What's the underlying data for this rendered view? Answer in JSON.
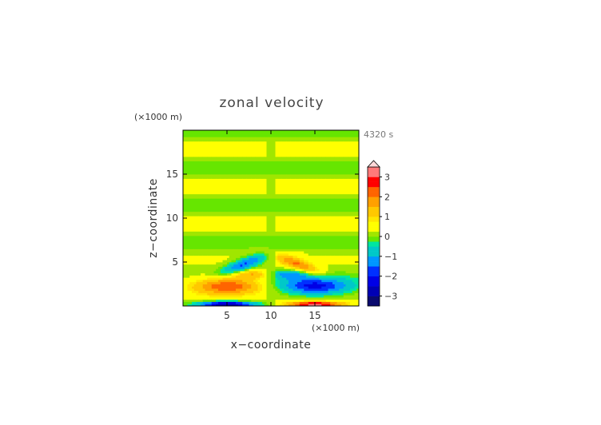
{
  "chart_data": {
    "type": "heatmap",
    "title": "zonal velocity",
    "xlabel": "x−coordinate",
    "ylabel": "z−coordinate",
    "x_unit": "(×1000 m)",
    "y_unit": "(×1000 m)",
    "time_label": "4320 s",
    "xlim": [
      0,
      20
    ],
    "ylim": [
      0,
      20
    ],
    "x_ticks": [
      5,
      10,
      15
    ],
    "y_ticks": [
      5,
      10,
      15
    ],
    "colorbar": {
      "min": -3.5,
      "max": 3.5,
      "step": 0.25,
      "tick_values": [
        3,
        2,
        1,
        0,
        -1,
        -2,
        -3
      ],
      "tick_labels": [
        "3",
        "2",
        "1",
        "0",
        "−1",
        "−2",
        "−3"
      ],
      "extend_max": true
    },
    "features": [
      {
        "x": 5.0,
        "z": 2.3,
        "value": 2.3,
        "rx": 4.0,
        "rz": 1.0
      },
      {
        "x": 15.0,
        "z": 2.3,
        "value": -2.3,
        "rx": 4.0,
        "rz": 1.0
      },
      {
        "x": 5.0,
        "z": 0.2,
        "value": -3.2,
        "rx": 3.2,
        "rz": 0.35
      },
      {
        "x": 15.0,
        "z": 0.2,
        "value": 3.2,
        "rx": 3.2,
        "rz": 0.35
      },
      {
        "x": 7.0,
        "z": 4.8,
        "value": -1.8,
        "rx": 2.6,
        "rz": 0.7,
        "tilt": 0.35
      },
      {
        "x": 13.0,
        "z": 4.8,
        "value": 1.8,
        "rx": 2.6,
        "rz": 0.7,
        "tilt": -0.35
      },
      {
        "x": 8.0,
        "z": 3.6,
        "value": 1.3,
        "rx": 2.2,
        "rz": 0.5
      },
      {
        "x": 12.0,
        "z": 3.6,
        "value": -1.3,
        "rx": 2.2,
        "rz": 0.5
      }
    ],
    "background_bands": {
      "amplitude": 0.35,
      "z_period": 4.2
    }
  }
}
